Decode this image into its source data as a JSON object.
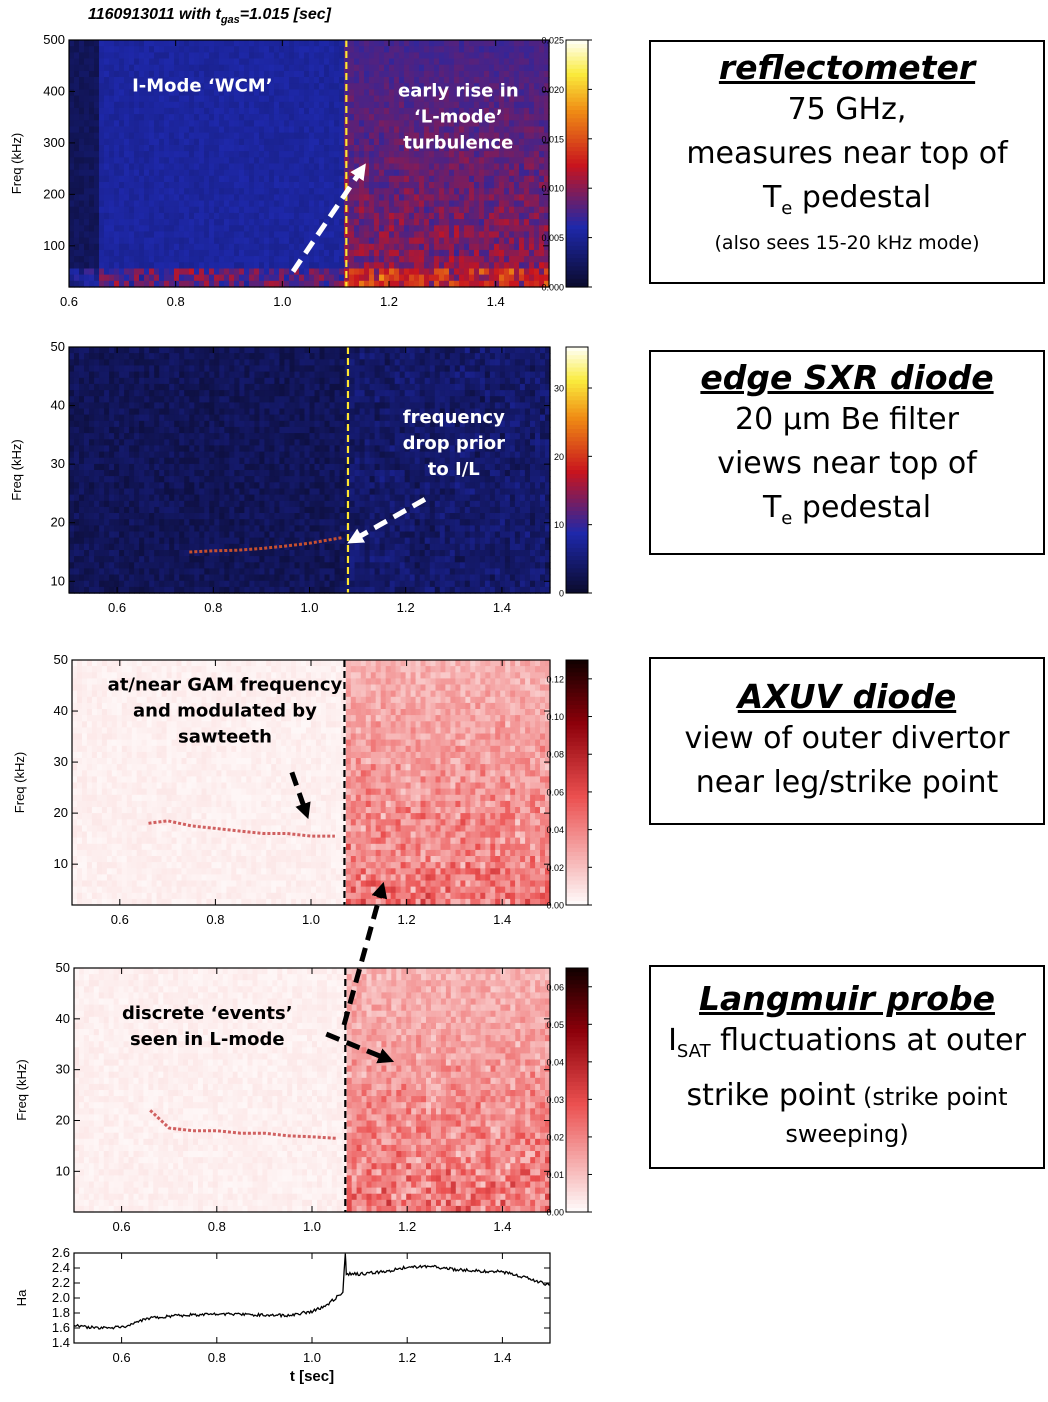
{
  "figure_title": {
    "prefix": "1160913011 with t",
    "sub": "gas",
    "suffix": "=1.015 [sec]"
  },
  "colors": {
    "ref_line_yellow": "#ffe630",
    "ref_line_black": "#000000",
    "arrow_white": "#ffffff",
    "arrow_black": "#000000"
  },
  "boxes": [
    {
      "heading": "reflectometer",
      "line1": "75 GHz,",
      "line2": "measures near top of",
      "line3_main": "T",
      "line3_sub": "e",
      "line3_rest": " pedestal",
      "note": "(also sees 15-20 kHz mode)"
    },
    {
      "heading": "edge SXR diode",
      "line1": "20 μm Be filter",
      "line2": "views near top of",
      "line3_main": "T",
      "line3_sub": "e",
      "line3_rest": " pedestal"
    },
    {
      "heading": "AXUV diode",
      "line1": "view of outer divertor",
      "line2": "near leg/strike point"
    },
    {
      "heading": "Langmuir probe",
      "line1_main": "I",
      "line1_sub": "SAT",
      "line1_rest": " fluctuations at outer",
      "line2_main": "strike point",
      "line2_small": " (strike point",
      "line3": "sweeping)"
    }
  ],
  "chart_data": [
    {
      "type": "heatmap",
      "id": "reflectometer",
      "colormap": "dark-blue-red-yellow-white",
      "ylabel": "Freq (kHz)",
      "xlim": [
        0.6,
        1.5
      ],
      "ylim": [
        20,
        500
      ],
      "xticks": [
        0.6,
        0.8,
        1.0,
        1.2,
        1.4
      ],
      "xtick_labels": [
        "0.6",
        "0.8",
        "1.0",
        "1.2",
        "1.4"
      ],
      "yticks": [
        100,
        200,
        300,
        400,
        500
      ],
      "ytick_labels": [
        "100",
        "200",
        "300",
        "400",
        "500"
      ],
      "colorbar": {
        "min": 0,
        "max": 0.025,
        "ticks": [
          0,
          0.005,
          0.01,
          0.015,
          0.02,
          0.025
        ],
        "tick_labels": [
          "0.000",
          "0.005",
          "0.010",
          "0.015",
          "0.020",
          "0.025"
        ]
      },
      "vline": 1.12,
      "annotations": [
        {
          "lines": [
            "I-Mode ‘WCM’"
          ],
          "x": 0.85,
          "y": 400,
          "color": "#ffffff"
        },
        {
          "lines": [
            "early rise in",
            "‘L-mode’",
            "turbulence"
          ],
          "x": 1.33,
          "y": 390,
          "color": "#ffffff"
        }
      ],
      "arrows": [
        {
          "from": [
            1.02,
            50
          ],
          "to": [
            1.15,
            250
          ],
          "color": "#ffffff"
        }
      ]
    },
    {
      "type": "heatmap",
      "id": "edge-sxr",
      "colormap": "dark-blue-red-yellow-white",
      "ylabel": "Freq (kHz)",
      "xlim": [
        0.5,
        1.5
      ],
      "ylim": [
        8,
        50
      ],
      "xticks": [
        0.6,
        0.8,
        1.0,
        1.2,
        1.4
      ],
      "xtick_labels": [
        "0.6",
        "0.8",
        "1.0",
        "1.2",
        "1.4"
      ],
      "yticks": [
        10,
        20,
        30,
        40,
        50
      ],
      "ytick_labels": [
        "10",
        "20",
        "30",
        "40",
        "50"
      ],
      "colorbar": {
        "min": 0,
        "max": 36,
        "ticks": [
          0,
          10,
          20,
          30
        ],
        "tick_labels": [
          "0",
          "10",
          "20",
          "30"
        ]
      },
      "vline": 1.08,
      "mode_track": [
        [
          0.75,
          15.0
        ],
        [
          0.8,
          15.2
        ],
        [
          0.85,
          15.3
        ],
        [
          0.9,
          15.6
        ],
        [
          0.95,
          16.0
        ],
        [
          1.0,
          16.5
        ],
        [
          1.05,
          17.2
        ],
        [
          1.07,
          17.5
        ]
      ],
      "annotations": [
        {
          "lines": [
            "frequency",
            "drop prior",
            "to I/L"
          ],
          "x": 1.3,
          "y": 37,
          "color": "#ffffff"
        }
      ],
      "arrows": [
        {
          "from": [
            1.24,
            24
          ],
          "to": [
            1.09,
            17
          ],
          "color": "#ffffff"
        }
      ]
    },
    {
      "type": "heatmap",
      "id": "axuv",
      "colormap": "white-red-black",
      "ylabel": "Freq (kHz)",
      "xlim": [
        0.5,
        1.5
      ],
      "ylim": [
        2,
        50
      ],
      "xticks": [
        0.6,
        0.8,
        1.0,
        1.2,
        1.4
      ],
      "xtick_labels": [
        "0.6",
        "0.8",
        "1.0",
        "1.2",
        "1.4"
      ],
      "yticks": [
        10,
        20,
        30,
        40,
        50
      ],
      "ytick_labels": [
        "10",
        "20",
        "30",
        "40",
        "50"
      ],
      "colorbar": {
        "min": 0,
        "max": 0.13,
        "ticks": [
          0,
          0.02,
          0.04,
          0.06,
          0.08,
          0.1,
          0.12
        ],
        "tick_labels": [
          "0.00",
          "0.02",
          "0.04",
          "0.06",
          "0.08",
          "0.10",
          "0.12"
        ]
      },
      "vline": 1.07,
      "mode_track": [
        [
          0.66,
          18
        ],
        [
          0.7,
          18.5
        ],
        [
          0.75,
          17.5
        ],
        [
          0.8,
          17
        ],
        [
          0.85,
          16.5
        ],
        [
          0.9,
          16
        ],
        [
          0.95,
          16
        ],
        [
          1.0,
          15.5
        ],
        [
          1.05,
          15.5
        ]
      ],
      "annotations": [
        {
          "lines": [
            "at/near GAM frequency",
            "and modulated by",
            "sawteeth"
          ],
          "x": 0.82,
          "y": 44,
          "color": "#000000"
        }
      ],
      "arrows": [
        {
          "from": [
            0.96,
            28
          ],
          "to": [
            0.99,
            20
          ],
          "color": "#000000"
        }
      ]
    },
    {
      "type": "heatmap",
      "id": "langmuir",
      "colormap": "white-red-black",
      "ylabel": "Freq (kHz)",
      "xlim": [
        0.5,
        1.5
      ],
      "ylim": [
        2,
        50
      ],
      "xticks": [
        0.6,
        0.8,
        1.0,
        1.2,
        1.4
      ],
      "xtick_labels": [
        "0.6",
        "0.8",
        "1.0",
        "1.2",
        "1.4"
      ],
      "yticks": [
        10,
        20,
        30,
        40,
        50
      ],
      "ytick_labels": [
        "10",
        "20",
        "30",
        "40",
        "50"
      ],
      "colorbar": {
        "min": 0,
        "max": 0.065,
        "ticks": [
          0,
          0.01,
          0.02,
          0.03,
          0.04,
          0.05,
          0.06
        ],
        "tick_labels": [
          "0.00",
          "0.01",
          "0.02",
          "0.03",
          "0.04",
          "0.05",
          "0.06"
        ]
      },
      "vline": 1.07,
      "mode_track": [
        [
          0.66,
          22
        ],
        [
          0.7,
          18.5
        ],
        [
          0.75,
          18
        ],
        [
          0.8,
          18
        ],
        [
          0.85,
          17.5
        ],
        [
          0.9,
          17.5
        ],
        [
          0.95,
          17
        ],
        [
          1.0,
          16.8
        ],
        [
          1.05,
          16.5
        ]
      ],
      "annotations": [
        {
          "lines": [
            "discrete ‘events’",
            "seen  in L-mode"
          ],
          "x": 0.78,
          "y": 40,
          "color": "#000000"
        }
      ],
      "arrows": [
        {
          "from": [
            1.03,
            37
          ],
          "to": [
            1.16,
            32
          ],
          "color": "#000000"
        }
      ]
    },
    {
      "type": "line",
      "id": "halpha",
      "ylabel": "Ha",
      "xlabel": "t [sec]",
      "xlim": [
        0.5,
        1.5
      ],
      "ylim": [
        1.4,
        2.6
      ],
      "xticks": [
        0.6,
        0.8,
        1.0,
        1.2,
        1.4
      ],
      "xtick_labels": [
        "0.6",
        "0.8",
        "1.0",
        "1.2",
        "1.4"
      ],
      "yticks": [
        1.4,
        1.6,
        1.8,
        2.0,
        2.2,
        2.4,
        2.6
      ],
      "ytick_labels": [
        "1.4",
        "1.6",
        "1.8",
        "2.0",
        "2.2",
        "2.4",
        "2.6"
      ],
      "series": [
        {
          "x": [
            0.5,
            0.55,
            0.6,
            0.62,
            0.65,
            0.7,
            0.8,
            0.9,
            0.95,
            1.0,
            1.03,
            1.05,
            1.065,
            1.07,
            1.072,
            1.1,
            1.15,
            1.2,
            1.25,
            1.3,
            1.35,
            1.4,
            1.45,
            1.5
          ],
          "values": [
            1.63,
            1.6,
            1.61,
            1.65,
            1.72,
            1.76,
            1.79,
            1.77,
            1.77,
            1.82,
            1.9,
            2.0,
            2.08,
            2.6,
            2.32,
            2.32,
            2.35,
            2.41,
            2.42,
            2.38,
            2.36,
            2.35,
            2.27,
            2.17
          ]
        }
      ],
      "arrows": [
        {
          "from": [
            1.07,
            0.0
          ],
          "to": [
            1.17,
            0.0
          ],
          "color": "#000000",
          "note": "long dashed arrow linking AXUV and Langmuir panels"
        }
      ]
    }
  ]
}
